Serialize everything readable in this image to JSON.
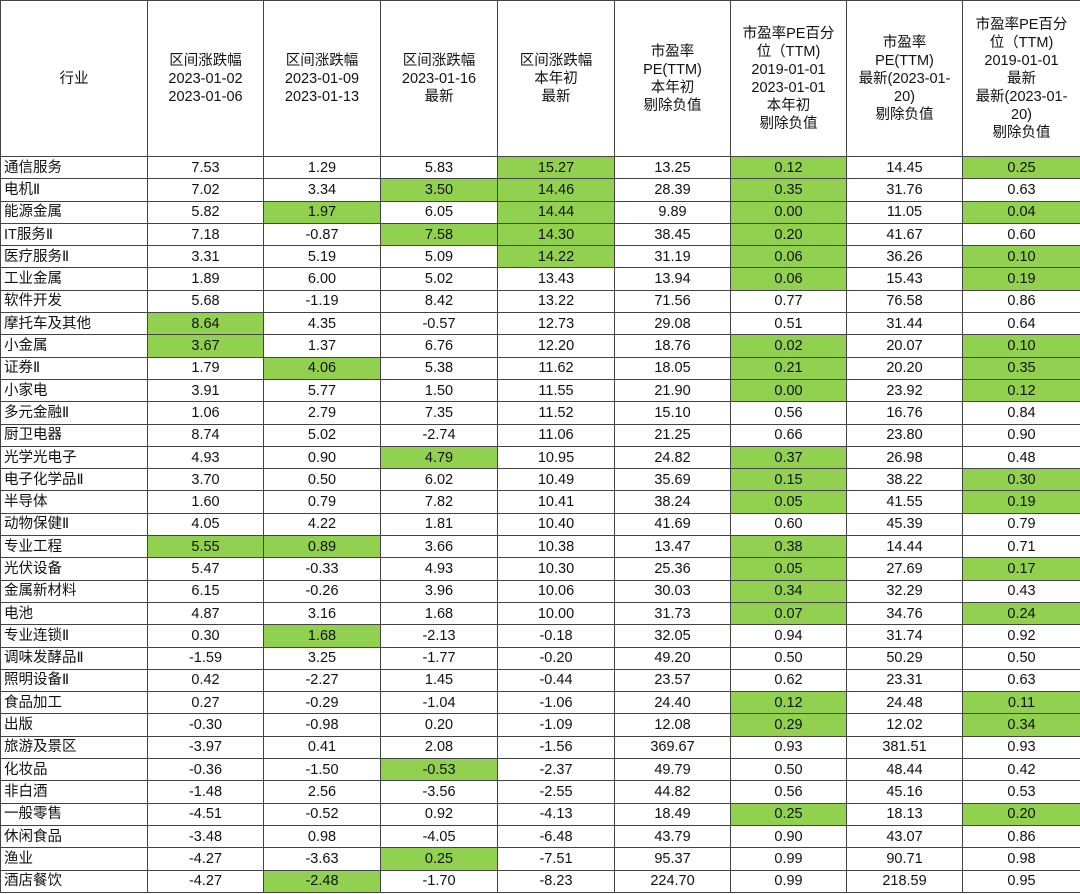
{
  "colors": {
    "highlight": "#92d050"
  },
  "headers": [
    "行业",
    "区间涨跌幅\n2023-01-02\n2023-01-06",
    "区间涨跌幅\n2023-01-09\n2023-01-13",
    "区间涨跌幅\n2023-01-16\n最新",
    "区间涨跌幅\n本年初\n最新",
    "市盈率\nPE(TTM)\n本年初\n剔除负值",
    "市盈率PE百分\n位（TTM)\n2019-01-01\n2023-01-01\n本年初\n剔除负值",
    "市盈率\nPE(TTM)\n最新(2023-01-\n20)\n剔除负值",
    "市盈率PE百分\n位（TTM)\n2019-01-01\n最新\n最新(2023-01-\n20)\n剔除负值"
  ],
  "rows": [
    {
      "cells": [
        "通信服务",
        "7.53",
        "1.29",
        "5.83",
        "15.27",
        "13.25",
        "0.12",
        "14.45",
        "0.25"
      ],
      "highlight": [
        4,
        6,
        8
      ]
    },
    {
      "cells": [
        "电机Ⅱ",
        "7.02",
        "3.34",
        "3.50",
        "14.46",
        "28.39",
        "0.35",
        "31.76",
        "0.63"
      ],
      "highlight": [
        3,
        4,
        6
      ]
    },
    {
      "cells": [
        "能源金属",
        "5.82",
        "1.97",
        "6.05",
        "14.44",
        "9.89",
        "0.00",
        "11.05",
        "0.04"
      ],
      "highlight": [
        2,
        4,
        6,
        8
      ]
    },
    {
      "cells": [
        "IT服务Ⅱ",
        "7.18",
        "-0.87",
        "7.58",
        "14.30",
        "38.45",
        "0.20",
        "41.67",
        "0.60"
      ],
      "highlight": [
        3,
        4,
        6
      ]
    },
    {
      "cells": [
        "医疗服务Ⅱ",
        "3.31",
        "5.19",
        "5.09",
        "14.22",
        "31.19",
        "0.06",
        "36.26",
        "0.10"
      ],
      "highlight": [
        4,
        6,
        8
      ]
    },
    {
      "cells": [
        "工业金属",
        "1.89",
        "6.00",
        "5.02",
        "13.43",
        "13.94",
        "0.06",
        "15.43",
        "0.19"
      ],
      "highlight": [
        6,
        8
      ]
    },
    {
      "cells": [
        "软件开发",
        "5.68",
        "-1.19",
        "8.42",
        "13.22",
        "71.56",
        "0.77",
        "76.58",
        "0.86"
      ],
      "highlight": []
    },
    {
      "cells": [
        "摩托车及其他",
        "8.64",
        "4.35",
        "-0.57",
        "12.73",
        "29.08",
        "0.51",
        "31.44",
        "0.64"
      ],
      "highlight": [
        1
      ]
    },
    {
      "cells": [
        "小金属",
        "3.67",
        "1.37",
        "6.76",
        "12.20",
        "18.76",
        "0.02",
        "20.07",
        "0.10"
      ],
      "highlight": [
        1,
        6,
        8
      ]
    },
    {
      "cells": [
        "证券Ⅱ",
        "1.79",
        "4.06",
        "5.38",
        "11.62",
        "18.05",
        "0.21",
        "20.20",
        "0.35"
      ],
      "highlight": [
        2,
        6,
        8
      ]
    },
    {
      "cells": [
        "小家电",
        "3.91",
        "5.77",
        "1.50",
        "11.55",
        "21.90",
        "0.00",
        "23.92",
        "0.12"
      ],
      "highlight": [
        6,
        8
      ]
    },
    {
      "cells": [
        "多元金融Ⅱ",
        "1.06",
        "2.79",
        "7.35",
        "11.52",
        "15.10",
        "0.56",
        "16.76",
        "0.84"
      ],
      "highlight": []
    },
    {
      "cells": [
        "厨卫电器",
        "8.74",
        "5.02",
        "-2.74",
        "11.06",
        "21.25",
        "0.66",
        "23.80",
        "0.90"
      ],
      "highlight": []
    },
    {
      "cells": [
        "光学光电子",
        "4.93",
        "0.90",
        "4.79",
        "10.95",
        "24.82",
        "0.37",
        "26.98",
        "0.48"
      ],
      "highlight": [
        3,
        6
      ]
    },
    {
      "cells": [
        "电子化学品Ⅱ",
        "3.70",
        "0.50",
        "6.02",
        "10.49",
        "35.69",
        "0.15",
        "38.22",
        "0.30"
      ],
      "highlight": [
        6,
        8
      ]
    },
    {
      "cells": [
        "半导体",
        "1.60",
        "0.79",
        "7.82",
        "10.41",
        "38.24",
        "0.05",
        "41.55",
        "0.19"
      ],
      "highlight": [
        6,
        8
      ]
    },
    {
      "cells": [
        "动物保健Ⅱ",
        "4.05",
        "4.22",
        "1.81",
        "10.40",
        "41.69",
        "0.60",
        "45.39",
        "0.79"
      ],
      "highlight": []
    },
    {
      "cells": [
        "专业工程",
        "5.55",
        "0.89",
        "3.66",
        "10.38",
        "13.47",
        "0.38",
        "14.44",
        "0.71"
      ],
      "highlight": [
        1,
        2,
        6
      ]
    },
    {
      "cells": [
        "光伏设备",
        "5.47",
        "-0.33",
        "4.93",
        "10.30",
        "25.36",
        "0.05",
        "27.69",
        "0.17"
      ],
      "highlight": [
        6,
        8
      ]
    },
    {
      "cells": [
        "金属新材料",
        "6.15",
        "-0.26",
        "3.96",
        "10.06",
        "30.03",
        "0.34",
        "32.29",
        "0.43"
      ],
      "highlight": [
        6
      ]
    },
    {
      "cells": [
        "电池",
        "4.87",
        "3.16",
        "1.68",
        "10.00",
        "31.73",
        "0.07",
        "34.76",
        "0.24"
      ],
      "highlight": [
        6,
        8
      ]
    },
    {
      "cells": [
        "专业连锁Ⅱ",
        "0.30",
        "1.68",
        "-2.13",
        "-0.18",
        "32.05",
        "0.94",
        "31.74",
        "0.92"
      ],
      "highlight": [
        2
      ]
    },
    {
      "cells": [
        "调味发酵品Ⅱ",
        "-1.59",
        "3.25",
        "-1.77",
        "-0.20",
        "49.20",
        "0.50",
        "50.29",
        "0.50"
      ],
      "highlight": []
    },
    {
      "cells": [
        "照明设备Ⅱ",
        "0.42",
        "-2.27",
        "1.45",
        "-0.44",
        "23.57",
        "0.62",
        "23.31",
        "0.63"
      ],
      "highlight": []
    },
    {
      "cells": [
        "食品加工",
        "0.27",
        "-0.29",
        "-1.04",
        "-1.06",
        "24.40",
        "0.12",
        "24.48",
        "0.11"
      ],
      "highlight": [
        6,
        8
      ]
    },
    {
      "cells": [
        "出版",
        "-0.30",
        "-0.98",
        "0.20",
        "-1.09",
        "12.08",
        "0.29",
        "12.02",
        "0.34"
      ],
      "highlight": [
        6,
        8
      ]
    },
    {
      "cells": [
        "旅游及景区",
        "-3.97",
        "0.41",
        "2.08",
        "-1.56",
        "369.67",
        "0.93",
        "381.51",
        "0.93"
      ],
      "highlight": []
    },
    {
      "cells": [
        "化妆品",
        "-0.36",
        "-1.50",
        "-0.53",
        "-2.37",
        "49.79",
        "0.50",
        "48.44",
        "0.42"
      ],
      "highlight": [
        3
      ]
    },
    {
      "cells": [
        "非白酒",
        "-1.48",
        "2.56",
        "-3.56",
        "-2.55",
        "44.82",
        "0.56",
        "45.16",
        "0.53"
      ],
      "highlight": []
    },
    {
      "cells": [
        "一般零售",
        "-4.51",
        "-0.52",
        "0.92",
        "-4.13",
        "18.49",
        "0.25",
        "18.13",
        "0.20"
      ],
      "highlight": [
        6,
        8
      ]
    },
    {
      "cells": [
        "休闲食品",
        "-3.48",
        "0.98",
        "-4.05",
        "-6.48",
        "43.79",
        "0.90",
        "43.07",
        "0.86"
      ],
      "highlight": []
    },
    {
      "cells": [
        "渔业",
        "-4.27",
        "-3.63",
        "0.25",
        "-7.51",
        "95.37",
        "0.99",
        "90.71",
        "0.98"
      ],
      "highlight": [
        3
      ]
    },
    {
      "cells": [
        "酒店餐饮",
        "-4.27",
        "-2.48",
        "-1.70",
        "-8.23",
        "224.70",
        "0.99",
        "218.59",
        "0.95"
      ],
      "highlight": [
        2
      ]
    }
  ]
}
